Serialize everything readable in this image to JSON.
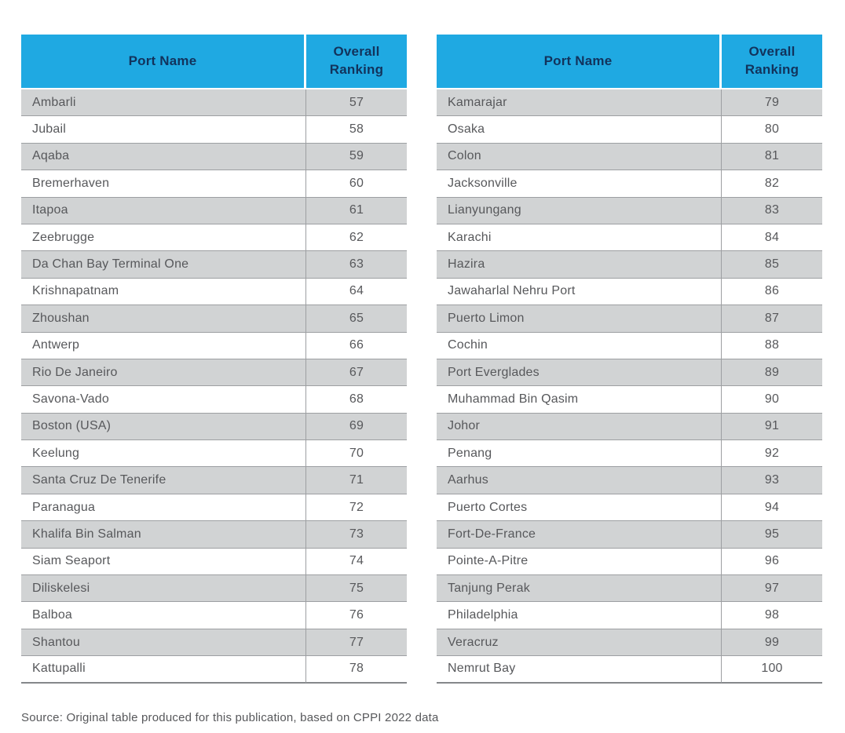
{
  "colors": {
    "header_bg": "#1fa9e2",
    "header_text": "#12335c",
    "row_shaded_bg": "#d1d3d4",
    "row_white_bg": "#ffffff",
    "grid_line": "#9d9fa2",
    "table_bottom_border": "#85878a",
    "body_text": "#57585b"
  },
  "source_note": "Source: Original table produced for this publication, based on CPPI 2022 data",
  "tables": [
    {
      "name": "ports-ranking-table-left",
      "columns": [
        "Port Name",
        "Overall Ranking"
      ],
      "rows": [
        {
          "port": "Ambarli",
          "rank": "57"
        },
        {
          "port": "Jubail",
          "rank": "58"
        },
        {
          "port": "Aqaba",
          "rank": "59"
        },
        {
          "port": "Bremerhaven",
          "rank": "60"
        },
        {
          "port": "Itapoa",
          "rank": "61"
        },
        {
          "port": "Zeebrugge",
          "rank": "62"
        },
        {
          "port": "Da Chan Bay Terminal One",
          "rank": "63"
        },
        {
          "port": "Krishnapatnam",
          "rank": "64"
        },
        {
          "port": "Zhoushan",
          "rank": "65"
        },
        {
          "port": "Antwerp",
          "rank": "66"
        },
        {
          "port": "Rio De Janeiro",
          "rank": "67"
        },
        {
          "port": "Savona-Vado",
          "rank": "68"
        },
        {
          "port": "Boston (USA)",
          "rank": "69"
        },
        {
          "port": "Keelung",
          "rank": "70"
        },
        {
          "port": "Santa Cruz De Tenerife",
          "rank": "71"
        },
        {
          "port": "Paranagua",
          "rank": "72"
        },
        {
          "port": "Khalifa Bin Salman",
          "rank": "73"
        },
        {
          "port": "Siam Seaport",
          "rank": "74"
        },
        {
          "port": "Diliskelesi",
          "rank": "75"
        },
        {
          "port": "Balboa",
          "rank": "76"
        },
        {
          "port": "Shantou",
          "rank": "77"
        },
        {
          "port": "Kattupalli",
          "rank": "78"
        }
      ]
    },
    {
      "name": "ports-ranking-table-right",
      "columns": [
        "Port Name",
        "Overall Ranking"
      ],
      "rows": [
        {
          "port": "Kamarajar",
          "rank": "79"
        },
        {
          "port": "Osaka",
          "rank": "80"
        },
        {
          "port": "Colon",
          "rank": "81"
        },
        {
          "port": "Jacksonville",
          "rank": "82"
        },
        {
          "port": "Lianyungang",
          "rank": "83"
        },
        {
          "port": "Karachi",
          "rank": "84"
        },
        {
          "port": "Hazira",
          "rank": "85"
        },
        {
          "port": "Jawaharlal Nehru Port",
          "rank": "86"
        },
        {
          "port": "Puerto Limon",
          "rank": "87"
        },
        {
          "port": "Cochin",
          "rank": "88"
        },
        {
          "port": "Port Everglades",
          "rank": "89"
        },
        {
          "port": "Muhammad Bin Qasim",
          "rank": "90"
        },
        {
          "port": "Johor",
          "rank": "91"
        },
        {
          "port": "Penang",
          "rank": "92"
        },
        {
          "port": "Aarhus",
          "rank": "93"
        },
        {
          "port": "Puerto Cortes",
          "rank": "94"
        },
        {
          "port": "Fort-De-France",
          "rank": "95"
        },
        {
          "port": "Pointe-A-Pitre",
          "rank": "96"
        },
        {
          "port": "Tanjung Perak",
          "rank": "97"
        },
        {
          "port": "Philadelphia",
          "rank": "98"
        },
        {
          "port": "Veracruz",
          "rank": "99"
        },
        {
          "port": "Nemrut Bay",
          "rank": "100"
        }
      ]
    }
  ]
}
